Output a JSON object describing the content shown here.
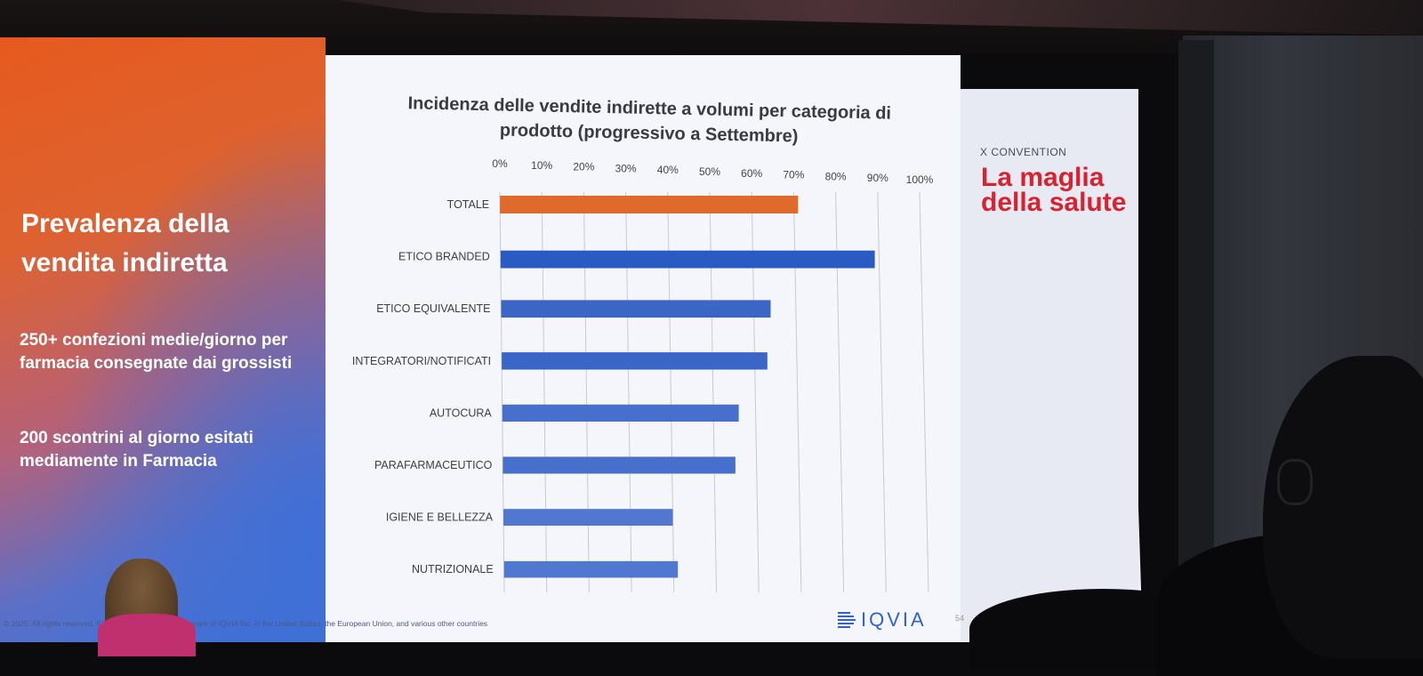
{
  "left_panel": {
    "title": "Prevalenza della vendita indiretta",
    "stat1": "250+ confezioni medie/giorno per farmacia consegnate dai grossisti",
    "stat2": "200 scontrini al giorno esitati mediamente in Farmacia"
  },
  "chart_data": {
    "type": "bar",
    "orientation": "horizontal",
    "title": "Incidenza delle vendite indirette a volumi per categoria di prodotto (progressivo a Settembre)",
    "categories": [
      "TOTALE",
      "ETICO BRANDED",
      "ETICO EQUIVALENTE",
      "INTEGRATORI/NOTIFICATI",
      "AUTOCURA",
      "PARAFARMACEUTICO",
      "IGIENE E BELLEZZA",
      "NUTRIZIONALE"
    ],
    "values": [
      71,
      89,
      64,
      63,
      56,
      55,
      40,
      41
    ],
    "x_tick_labels": [
      "0%",
      "10%",
      "20%",
      "30%",
      "40%",
      "50%",
      "60%",
      "70%",
      "80%",
      "90%",
      "100%"
    ],
    "xlim": [
      0,
      100
    ],
    "grid": true,
    "bar_colors": [
      "#e06a2b",
      "#2a5bc4",
      "#3a66c8",
      "#3a66c8",
      "#4770cc",
      "#4770cc",
      "#5078d0",
      "#5078d0"
    ]
  },
  "side_panel": {
    "convention": "X CONVENTION",
    "headline": "La maglia della salute"
  },
  "footer": {
    "copyright": "© 2025. All rights reserved. IQVIA® is a registered trademark of IQVIA Inc. in the United States, the European Union, and various other countries",
    "logo": "IQVIA",
    "page": "54"
  }
}
